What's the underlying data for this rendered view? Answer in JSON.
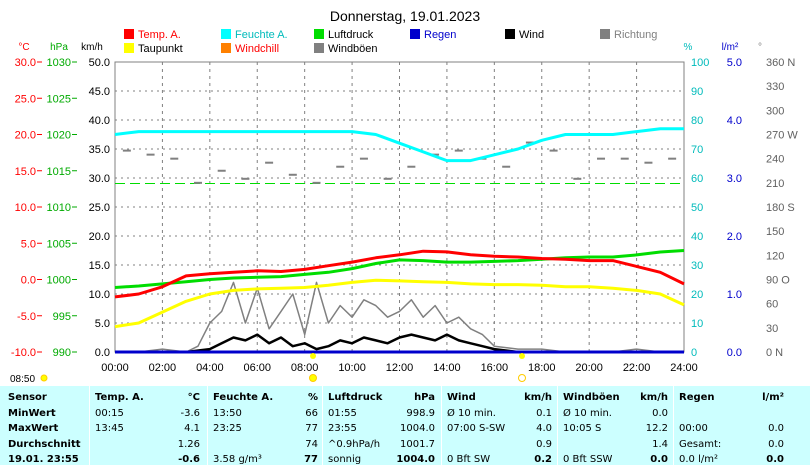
{
  "title": "Donnerstag, 19.01.2023",
  "colors": {
    "temp": "#ff0000",
    "humidity": "#00ffff",
    "pressure": "#00dd00",
    "rain": "#0000cc",
    "wind": "#000000",
    "direction": "#808080",
    "dewpoint": "#ffff00",
    "windchill": "#ff8000",
    "gust": "#808080",
    "grid": "#808080"
  },
  "legend": [
    {
      "key": "temp",
      "label": "Temp. A."
    },
    {
      "key": "humidity",
      "label": "Feuchte A."
    },
    {
      "key": "pressure",
      "label": "Luftdruck"
    },
    {
      "key": "rain",
      "label": "Regen"
    },
    {
      "key": "wind",
      "label": "Wind"
    },
    {
      "key": "direction",
      "label": "Richtung"
    },
    {
      "key": "dewpoint",
      "label": "Taupunkt"
    },
    {
      "key": "windchill",
      "label": "Windchill"
    },
    {
      "key": "gust",
      "label": "Windböen"
    }
  ],
  "axes": {
    "temp": {
      "unit": "°C",
      "ticks": [
        "30.0",
        "25.0",
        "20.0",
        "15.0",
        "10.0",
        "5.0",
        "0.0",
        "-5.0",
        "-10.0"
      ]
    },
    "pressure": {
      "unit": "hPa",
      "ticks": [
        "1030",
        "1025",
        "1020",
        "1015",
        "1010",
        "1005",
        "1000",
        "995",
        "990"
      ]
    },
    "wind": {
      "unit": "km/h",
      "ticks": [
        "50.0",
        "45.0",
        "40.0",
        "35.0",
        "30.0",
        "25.0",
        "20.0",
        "15.0",
        "10.0",
        "5.0",
        "0.0"
      ]
    },
    "humidity": {
      "unit": "%",
      "ticks": [
        "100",
        "90",
        "80",
        "70",
        "60",
        "50",
        "40",
        "30",
        "20",
        "10",
        "0"
      ]
    },
    "rain": {
      "unit": "l/m²",
      "ticks": [
        "5.0",
        "4.0",
        "3.0",
        "2.0",
        "1.0",
        "0.0"
      ]
    },
    "direction": {
      "unit": "°",
      "ticks": [
        "360 N",
        "330",
        "300",
        "270 W",
        "240",
        "210",
        "180 S",
        "150",
        "120",
        "90 O",
        "60",
        "30",
        "0 N"
      ]
    },
    "x_ticks": [
      "00:00",
      "02:00",
      "04:00",
      "06:00",
      "08:00",
      "10:00",
      "12:00",
      "14:00",
      "16:00",
      "18:00",
      "20:00",
      "22:00",
      "24:00"
    ]
  },
  "sun": {
    "sunrise": "08:50"
  },
  "chart_data": {
    "type": "line",
    "x_unit": "hour",
    "series": [
      {
        "name": "Temp. A.",
        "key": "temp",
        "x": [
          0,
          1,
          2,
          3,
          4,
          5,
          6,
          7,
          8,
          9,
          10,
          11,
          12,
          13,
          14,
          15,
          16,
          17,
          18,
          19,
          20,
          21,
          22,
          23,
          24
        ],
        "values": [
          -2.4,
          -2.0,
          -1.0,
          0.5,
          0.8,
          1.0,
          1.2,
          1.1,
          1.4,
          1.9,
          2.4,
          3.0,
          3.4,
          3.9,
          3.8,
          3.4,
          3.2,
          3.1,
          2.9,
          2.8,
          2.6,
          2.6,
          1.8,
          1.0,
          -0.6
        ]
      },
      {
        "name": "Taupunkt",
        "key": "dewpoint",
        "x": [
          0,
          1,
          2,
          3,
          4,
          5,
          6,
          7,
          8,
          9,
          10,
          11,
          12,
          13,
          14,
          15,
          16,
          17,
          18,
          19,
          20,
          21,
          22,
          23,
          24
        ],
        "values": [
          -6.5,
          -6.0,
          -4.5,
          -3.0,
          -2.0,
          -1.5,
          -1.3,
          -1.2,
          -1.1,
          -0.8,
          -0.4,
          -0.1,
          -0.2,
          -0.3,
          -0.4,
          -0.6,
          -0.7,
          -0.7,
          -0.8,
          -1.0,
          -1.0,
          -1.2,
          -1.5,
          -2.0,
          -3.5
        ]
      },
      {
        "name": "Feuchte A.",
        "key": "humidity",
        "x": [
          0,
          1,
          2,
          3,
          4,
          5,
          6,
          7,
          8,
          9,
          10,
          11,
          12,
          13,
          14,
          15,
          16,
          17,
          18,
          19,
          20,
          21,
          22,
          23,
          24
        ],
        "values": [
          75,
          76,
          76,
          76,
          76,
          76,
          76,
          76,
          76,
          76,
          76,
          75,
          72,
          69,
          66,
          66,
          68,
          70,
          73,
          75,
          75,
          75,
          76,
          77,
          77
        ]
      },
      {
        "name": "Luftdruck",
        "key": "pressure",
        "x": [
          0,
          1,
          2,
          3,
          4,
          5,
          6,
          7,
          8,
          9,
          10,
          11,
          12,
          13,
          14,
          15,
          16,
          17,
          18,
          19,
          20,
          21,
          22,
          23,
          24
        ],
        "values": [
          998.9,
          999.1,
          999.4,
          999.7,
          1000.0,
          1000.2,
          1000.3,
          1000.4,
          1000.7,
          1001.0,
          1001.5,
          1002.2,
          1002.7,
          1002.6,
          1002.4,
          1002.4,
          1002.5,
          1002.6,
          1002.8,
          1003.0,
          1003.1,
          1003.1,
          1003.4,
          1003.8,
          1004.0
        ]
      },
      {
        "name": "Wind",
        "key": "wind",
        "x": [
          0,
          1,
          2,
          3,
          4,
          4.5,
          5,
          5.5,
          6,
          6.5,
          7,
          7.5,
          8,
          8.5,
          9,
          9.5,
          10,
          10.5,
          11,
          11.5,
          12,
          12.5,
          13,
          13.5,
          14,
          14.5,
          15,
          15.5,
          16,
          17,
          18,
          19,
          20,
          21,
          22,
          23,
          24
        ],
        "values": [
          0,
          0,
          0,
          0,
          0.5,
          1.5,
          2.5,
          2,
          3,
          1.5,
          2.5,
          1,
          1.5,
          0.5,
          1,
          2,
          1.5,
          2.5,
          2,
          1.5,
          2.5,
          3,
          2.5,
          2,
          3,
          2,
          1.5,
          1,
          0.5,
          0,
          0,
          0,
          0,
          0,
          0,
          0,
          0
        ]
      },
      {
        "name": "Windböen",
        "key": "gust",
        "x": [
          0,
          1,
          2,
          3,
          3.5,
          4,
          4.5,
          5,
          5.5,
          6,
          6.5,
          7,
          7.5,
          8,
          8.5,
          9,
          9.5,
          10,
          10.5,
          11,
          11.5,
          12,
          12.5,
          13,
          13.5,
          14,
          14.5,
          15,
          15.5,
          16,
          17,
          18,
          19,
          20,
          21,
          22,
          23,
          24
        ],
        "values": [
          0,
          0,
          0.5,
          0,
          1,
          5,
          7,
          12,
          5,
          11,
          4,
          7,
          10,
          3,
          12,
          5,
          8,
          6,
          9,
          8,
          6,
          7,
          9,
          6,
          8,
          5,
          6,
          4,
          3,
          1,
          0.5,
          0.5,
          0,
          0,
          0,
          0.5,
          0,
          0
        ]
      },
      {
        "name": "Regen",
        "key": "rain",
        "x": [
          0,
          24
        ],
        "values": [
          0,
          0
        ]
      }
    ],
    "direction_dots": [
      {
        "x": 0.5,
        "deg": 250
      },
      {
        "x": 1.5,
        "deg": 245
      },
      {
        "x": 2.5,
        "deg": 240
      },
      {
        "x": 3.5,
        "deg": 210
      },
      {
        "x": 4.5,
        "deg": 225
      },
      {
        "x": 5.5,
        "deg": 215
      },
      {
        "x": 6.5,
        "deg": 235
      },
      {
        "x": 7.5,
        "deg": 220
      },
      {
        "x": 8.5,
        "deg": 210
      },
      {
        "x": 9.5,
        "deg": 230
      },
      {
        "x": 10.5,
        "deg": 240
      },
      {
        "x": 11.5,
        "deg": 215
      },
      {
        "x": 12.5,
        "deg": 230
      },
      {
        "x": 13.5,
        "deg": 245
      },
      {
        "x": 14.5,
        "deg": 250
      },
      {
        "x": 15.5,
        "deg": 240
      },
      {
        "x": 16.5,
        "deg": 230
      },
      {
        "x": 17.5,
        "deg": 260
      },
      {
        "x": 18.5,
        "deg": 250
      },
      {
        "x": 19.5,
        "deg": 215
      },
      {
        "x": 20.5,
        "deg": 240
      },
      {
        "x": 21.5,
        "deg": 240
      },
      {
        "x": 22.5,
        "deg": 235
      },
      {
        "x": 23.5,
        "deg": 240
      }
    ],
    "reference_line": {
      "key": "pressure",
      "value": 1013.25
    }
  },
  "table": {
    "row_labels": [
      "Sensor",
      "MinWert",
      "MaxWert",
      "Durchschnitt",
      "19.01. 23:55"
    ],
    "columns": [
      {
        "title": "Temp. A.",
        "unit": "°C",
        "rows": [
          [
            "00:15",
            "-3.6"
          ],
          [
            "13:45",
            "4.1"
          ],
          [
            "",
            "1.26"
          ],
          [
            "",
            "-0.6"
          ]
        ]
      },
      {
        "title": "Feuchte A.",
        "unit": "%",
        "rows": [
          [
            "13:50",
            "66"
          ],
          [
            "23:25",
            "77"
          ],
          [
            "",
            "74"
          ],
          [
            "3.58 g/m³",
            "77"
          ]
        ]
      },
      {
        "title": "Luftdruck",
        "unit": "hPa",
        "rows": [
          [
            "01:55",
            "998.9"
          ],
          [
            "23:55",
            "1004.0"
          ],
          [
            "^0.9hPa/h",
            "1001.7"
          ],
          [
            "sonnig",
            "1004.0"
          ]
        ]
      },
      {
        "title": "Wind",
        "unit": "km/h",
        "rows": [
          [
            "Ø 10 min.",
            "0.1"
          ],
          [
            "07:00  S-SW",
            "4.0"
          ],
          [
            "",
            "0.9"
          ],
          [
            "0 Bft SW",
            "0.2"
          ]
        ]
      },
      {
        "title": "Windböen",
        "unit": "km/h",
        "rows": [
          [
            "Ø 10 min.",
            "0.0"
          ],
          [
            "10:05  S",
            "12.2"
          ],
          [
            "",
            "1.4"
          ],
          [
            "0 Bft SSW",
            "0.0"
          ]
        ]
      },
      {
        "title": "Regen",
        "unit": "l/m²",
        "rows": [
          [
            "",
            ""
          ],
          [
            "00:00",
            "0.0"
          ],
          [
            "Gesamt:",
            "0.0"
          ],
          [
            "0.0 l/m²",
            "0.0"
          ]
        ]
      }
    ]
  }
}
